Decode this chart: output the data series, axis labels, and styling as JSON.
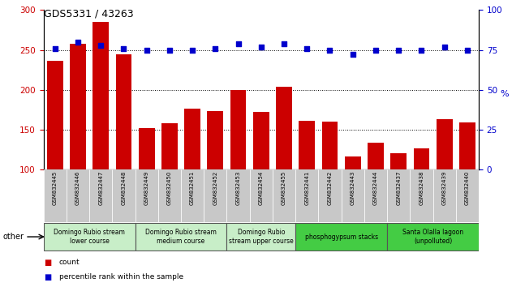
{
  "title": "GDS5331 / 43263",
  "samples": [
    "GSM832445",
    "GSM832446",
    "GSM832447",
    "GSM832448",
    "GSM832449",
    "GSM832450",
    "GSM832451",
    "GSM832452",
    "GSM832453",
    "GSM832454",
    "GSM832455",
    "GSM832441",
    "GSM832442",
    "GSM832443",
    "GSM832444",
    "GSM832437",
    "GSM832438",
    "GSM832439",
    "GSM832440"
  ],
  "counts": [
    236,
    258,
    285,
    244,
    152,
    158,
    176,
    173,
    200,
    172,
    204,
    161,
    160,
    116,
    133,
    120,
    126,
    163,
    159
  ],
  "percentiles": [
    76,
    80,
    78,
    76,
    75,
    75,
    75,
    76,
    79,
    77,
    79,
    76,
    75,
    72,
    75,
    75,
    75,
    77,
    75
  ],
  "groups": [
    {
      "label": "Domingo Rubio stream\nlower course",
      "start": 0,
      "end": 4,
      "color": "#c8eec8"
    },
    {
      "label": "Domingo Rubio stream\nmedium course",
      "start": 4,
      "end": 8,
      "color": "#c8eec8"
    },
    {
      "label": "Domingo Rubio\nstream upper course",
      "start": 8,
      "end": 11,
      "color": "#c8eec8"
    },
    {
      "label": "phosphogypsum stacks",
      "start": 11,
      "end": 15,
      "color": "#44cc44"
    },
    {
      "label": "Santa Olalla lagoon\n(unpolluted)",
      "start": 15,
      "end": 19,
      "color": "#44cc44"
    }
  ],
  "bar_color": "#cc0000",
  "dot_color": "#0000cc",
  "ylim_left": [
    100,
    300
  ],
  "ylim_right": [
    0,
    100
  ],
  "yticks_left": [
    100,
    150,
    200,
    250,
    300
  ],
  "yticks_right": [
    0,
    25,
    50,
    75,
    100
  ],
  "grid_values": [
    150,
    200,
    250
  ],
  "xlabel_area_color": "#c8c8c8"
}
